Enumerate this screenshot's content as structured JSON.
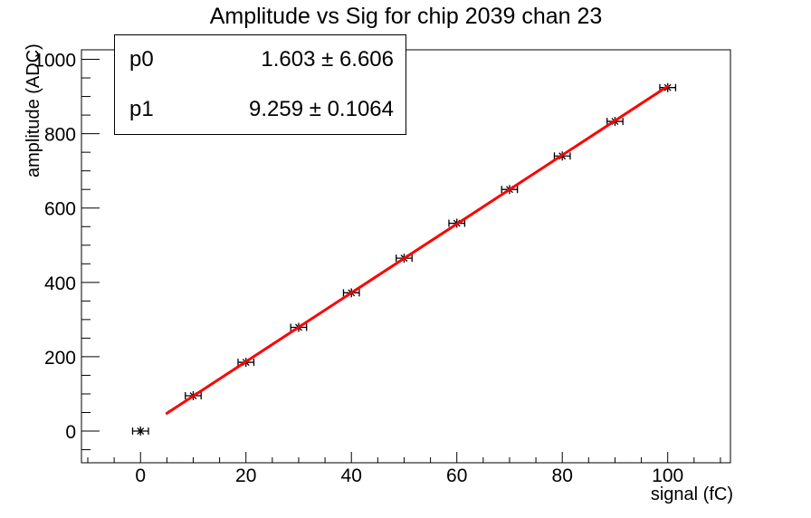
{
  "title": "Amplitude vs Sig for chip 2039 chan 23",
  "stats_box": {
    "rows": [
      {
        "name": "p0",
        "value": "1.603 ± 6.606"
      },
      {
        "name": "p1",
        "value": "9.259 ± 0.1064"
      }
    ]
  },
  "chart_data": {
    "type": "scatter",
    "title": "Amplitude vs Sig for chip 2039 chan 23",
    "xlabel": "signal (fC)",
    "ylabel": "amplitude (ADC)",
    "x": [
      0,
      10,
      20,
      30,
      40,
      50,
      60,
      70,
      80,
      90,
      100
    ],
    "y": [
      0,
      95,
      185,
      279,
      372,
      465,
      559,
      650,
      740,
      833,
      924
    ],
    "x_error": 1.5,
    "marker": "asterisk",
    "marker_color": "#000000",
    "fit": {
      "type": "linear",
      "p0": 1.603,
      "p0_err": 6.606,
      "p1": 9.259,
      "p1_err": 0.1064,
      "range": [
        5,
        100
      ],
      "color": "#ff0000"
    },
    "xlim": [
      -11.2,
      111.9
    ],
    "ylim": [
      -85.2,
      1025.6
    ],
    "xticks": [
      0,
      20,
      40,
      60,
      80,
      100
    ],
    "yticks": [
      0,
      200,
      400,
      600,
      800,
      1000
    ],
    "x_minor_step": 5,
    "y_minor_step": 50,
    "grid": false,
    "frame": true,
    "legend_position": "stats box top-left"
  }
}
